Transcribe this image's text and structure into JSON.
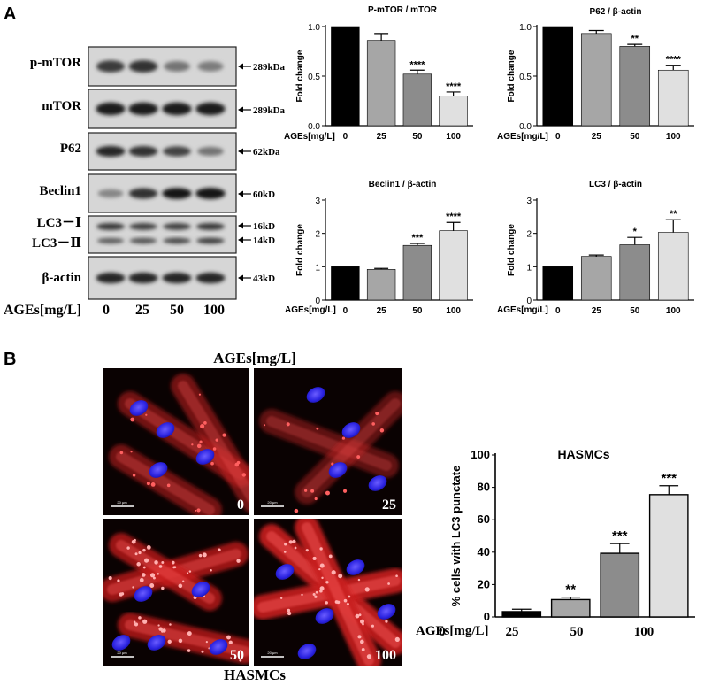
{
  "panel_a": {
    "label": "A",
    "blot": {
      "rows": [
        {
          "label": "p-mTOR",
          "size": "289kDa",
          "intensity": [
            0.75,
            0.8,
            0.45,
            0.4
          ],
          "style": "wide"
        },
        {
          "label": "mTOR",
          "size": "289kDa",
          "intensity": [
            0.9,
            0.9,
            0.9,
            0.9
          ],
          "style": "wide"
        },
        {
          "label": "P62",
          "size": "62kDa",
          "intensity": [
            0.85,
            0.8,
            0.7,
            0.45
          ],
          "style": "normal"
        },
        {
          "label": "Beclin1",
          "size": "60kD",
          "intensity": [
            0.35,
            0.8,
            0.92,
            0.95
          ],
          "style": "normal"
        },
        {
          "label": "LC3－Ⅰ",
          "size": "16kD",
          "intensity": [
            0.75,
            0.7,
            0.7,
            0.75
          ],
          "style": "lc3a"
        },
        {
          "label": "LC3－Ⅱ",
          "size": "14kD",
          "intensity": [
            0.55,
            0.6,
            0.65,
            0.7
          ],
          "style": "lc3b"
        },
        {
          "label": "β-actin",
          "size": "43kD",
          "intensity": [
            0.85,
            0.85,
            0.85,
            0.85
          ],
          "style": "normal"
        }
      ],
      "x_title": "AGEs[mg/L]",
      "doses": [
        "0",
        "25",
        "50",
        "100"
      ]
    }
  },
  "chart_data": [
    {
      "type": "bar",
      "title": "P-mTOR / mTOR",
      "xlabel": "AGEs[mg/L]",
      "ylabel": "Fold change",
      "categories": [
        "0",
        "25",
        "50",
        "100"
      ],
      "values": [
        1.0,
        0.86,
        0.52,
        0.3
      ],
      "errors": [
        0,
        0.07,
        0.04,
        0.04
      ],
      "significance": [
        "",
        "",
        "****",
        "****"
      ],
      "ylim": [
        0,
        1.0
      ],
      "yticks": [
        "0.0",
        "0.5",
        "1.0"
      ],
      "colors": [
        "#000000",
        "#a6a6a6",
        "#8c8c8c",
        "#e0e0e0"
      ]
    },
    {
      "type": "bar",
      "title": "P62 / β-actin",
      "xlabel": "AGEs[mg/L]",
      "ylabel": "Fold change",
      "categories": [
        "0",
        "25",
        "50",
        "100"
      ],
      "values": [
        1.0,
        0.93,
        0.8,
        0.56
      ],
      "errors": [
        0,
        0.03,
        0.02,
        0.05
      ],
      "significance": [
        "",
        "",
        "**",
        "****"
      ],
      "ylim": [
        0,
        1.0
      ],
      "yticks": [
        "0.0",
        "0.5",
        "1.0"
      ],
      "colors": [
        "#000000",
        "#a6a6a6",
        "#8c8c8c",
        "#e0e0e0"
      ]
    },
    {
      "type": "bar",
      "title": "Beclin1 / β-actin",
      "xlabel": "AGEs[mg/L]",
      "ylabel": "Fold change",
      "categories": [
        "0",
        "25",
        "50",
        "100"
      ],
      "values": [
        1.0,
        0.92,
        1.64,
        2.08
      ],
      "errors": [
        0,
        0.03,
        0.06,
        0.25
      ],
      "significance": [
        "",
        "",
        "***",
        "****"
      ],
      "ylim": [
        0,
        3
      ],
      "yticks": [
        "0",
        "1",
        "2",
        "3"
      ],
      "colors": [
        "#000000",
        "#a6a6a6",
        "#8c8c8c",
        "#e0e0e0"
      ]
    },
    {
      "type": "bar",
      "title": "LC3 / β-actin",
      "xlabel": "AGEs[mg/L]",
      "ylabel": "Fold change",
      "categories": [
        "0",
        "25",
        "50",
        "100"
      ],
      "values": [
        1.0,
        1.31,
        1.66,
        2.03
      ],
      "errors": [
        0,
        0.04,
        0.22,
        0.38
      ],
      "significance": [
        "",
        "",
        "*",
        "**"
      ],
      "ylim": [
        0,
        3
      ],
      "yticks": [
        "0",
        "1",
        "2",
        "3"
      ],
      "colors": [
        "#000000",
        "#a6a6a6",
        "#8c8c8c",
        "#e0e0e0"
      ]
    },
    {
      "type": "bar",
      "title": "HASMCs",
      "xlabel": "AGEs[mg/L]",
      "ylabel": "% cells with LC3 punctate",
      "categories": [
        "0",
        "25",
        "50",
        "100"
      ],
      "values": [
        3.3,
        10.7,
        39.3,
        75.5
      ],
      "errors": [
        1.5,
        1.5,
        6.0,
        5.5
      ],
      "significance": [
        "",
        "**",
        "***",
        "***"
      ],
      "ylim": [
        0,
        100
      ],
      "yticks": [
        "0",
        "20",
        "40",
        "60",
        "80",
        "100"
      ],
      "colors": [
        "#000000",
        "#a6a6a6",
        "#8c8c8c",
        "#e0e0e0"
      ]
    }
  ],
  "panel_b": {
    "label": "B",
    "micrograph_header": "AGEs[mg/L]",
    "micrograph_footer": "HASMCs",
    "micrographs": [
      {
        "dose_label": "0",
        "scale_bar": "20 μm"
      },
      {
        "dose_label": "25",
        "scale_bar": "20 μm"
      },
      {
        "dose_label": "50",
        "scale_bar": "20 μm"
      },
      {
        "dose_label": "100",
        "scale_bar": "20 μm"
      }
    ]
  }
}
